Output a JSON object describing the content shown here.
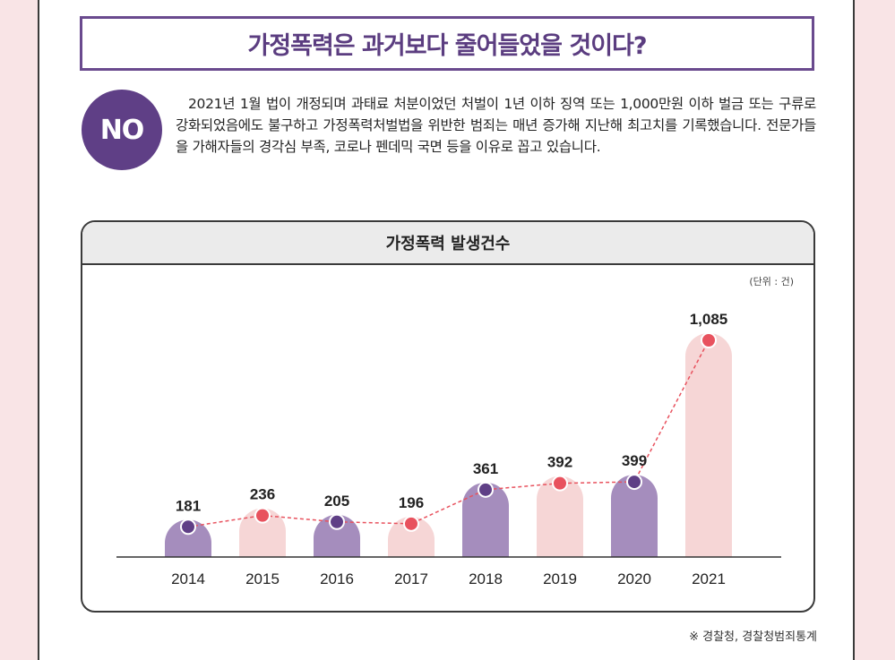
{
  "title": "가정폭력은 과거보다 줄어들었을 것이다?",
  "badge": "NO",
  "paragraph": "2021년 1월 법이 개정되며 과태료 처분이었던 처벌이 1년 이하 징역 또는 1,000만원 이하 벌금 또는 구류로 강화되었음에도 불구하고 가정폭력처벌법을 위반한 범죄는 매년 증가해 지난해 최고치를 기록했습니다. 전문가들을 가해자들의 경각심 부족, 코로나 펜데믹 국면 등을 이유로 꼽고 있습니다.",
  "source": "※ 경찰청, 경찰청범죄통계",
  "colors": {
    "purple_bar": "#a58dbd",
    "pink_bar": "#f6d6d6",
    "purple_dot": "#5f3f86",
    "red_dot": "#e8525e",
    "line": "#e8525e"
  },
  "chart_data": {
    "type": "bar",
    "title": "가정폭력 발생건수",
    "unit_label": "(단위 : 건)",
    "categories": [
      "2014",
      "2015",
      "2016",
      "2017",
      "2018",
      "2019",
      "2020",
      "2021"
    ],
    "values": [
      181,
      236,
      205,
      196,
      361,
      392,
      399,
      1085
    ],
    "value_labels": [
      "181",
      "236",
      "205",
      "196",
      "361",
      "392",
      "399",
      "1,085"
    ],
    "overlay": "dashed line through bar tops",
    "grid": false,
    "legend": "none"
  }
}
